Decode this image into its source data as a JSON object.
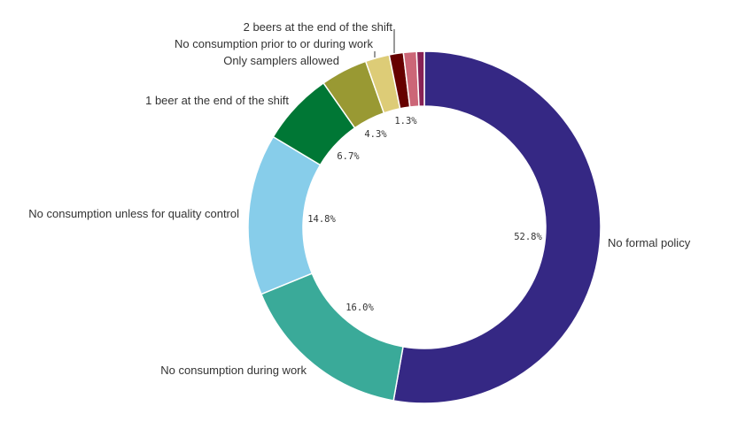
{
  "chart_data": {
    "type": "pie",
    "donut": true,
    "unit": "%",
    "slices": [
      {
        "label": "No formal policy",
        "value": 52.8,
        "pct_label": "52.8%",
        "color": "#352884"
      },
      {
        "label": "No consumption during work",
        "value": 16.0,
        "pct_label": "16.0%",
        "color": "#3aaa99"
      },
      {
        "label": "No consumption unless for quality control",
        "value": 14.8,
        "pct_label": "14.8%",
        "color": "#87cdea"
      },
      {
        "label": "1 beer at the end of the shift",
        "value": 6.7,
        "pct_label": "6.7%",
        "color": "#007735"
      },
      {
        "label": "Only samplers allowed",
        "value": 4.3,
        "pct_label": "4.3%",
        "color": "#999933"
      },
      {
        "label": "No consumption prior to or during work",
        "value": 2.2,
        "pct_label": "",
        "color": "#ddcc77"
      },
      {
        "label": "2 beers at the end of the shift",
        "value": 1.3,
        "pct_label": "1.3%",
        "color": "#660000"
      },
      {
        "label": "",
        "value": 1.2,
        "pct_label": "",
        "color": "#cc6677"
      },
      {
        "label": "",
        "value": 0.7,
        "pct_label": "",
        "color": "#882255"
      }
    ]
  }
}
